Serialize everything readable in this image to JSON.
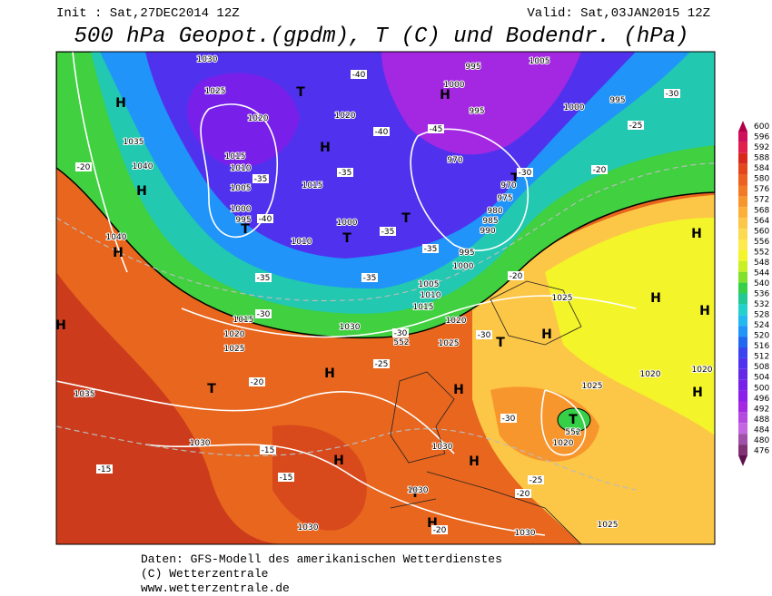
{
  "header": {
    "init": "Init : Sat,27DEC2014 12Z",
    "valid": "Valid: Sat,03JAN2015 12Z",
    "title": "500 hPa Geopot.(gpdm), T (C) und Bodendr. (hPa)"
  },
  "colorbar": {
    "levels": [
      600,
      596,
      592,
      588,
      584,
      580,
      576,
      572,
      568,
      564,
      560,
      556,
      552,
      548,
      544,
      540,
      536,
      532,
      528,
      524,
      520,
      516,
      512,
      508,
      504,
      500,
      496,
      492,
      488,
      484,
      480,
      476
    ],
    "colors": [
      "#b0004a",
      "#d0105a",
      "#e0204a",
      "#d8281c",
      "#e4461c",
      "#ec6020",
      "#f27a26",
      "#f8962e",
      "#fcb03a",
      "#fcc646",
      "#fcda50",
      "#fdea4c",
      "#f4f42a",
      "#c8f022",
      "#80e02a",
      "#36d048",
      "#22c894",
      "#22d0cc",
      "#22b8f0",
      "#2094f8",
      "#2068f0",
      "#3a44f0",
      "#5032ee",
      "#6428e6",
      "#7820ea",
      "#8c20ea",
      "#a428e2",
      "#b448e0",
      "#c466e0",
      "#a050a8",
      "#803274",
      "#5e1050"
    ]
  },
  "map_labels": [
    "H",
    "H",
    "H",
    "H",
    "T",
    "H",
    "H",
    "T",
    "H",
    "T",
    "T",
    "T",
    "H",
    "T",
    "T",
    "H",
    "H",
    "H",
    "T",
    "H",
    "H",
    "H",
    "H",
    "T",
    "H",
    "1030",
    "1025",
    "1020",
    "1035",
    "1040",
    "1015",
    "1010",
    "1005",
    "1000",
    "995",
    "1020",
    "1015",
    "1000",
    "1010",
    "1040",
    "1015",
    "1020",
    "1025",
    "1030",
    "1005",
    "1010",
    "1015",
    "1020",
    "1025",
    "995",
    "1000",
    "990",
    "985",
    "980",
    "975",
    "970",
    "995",
    "1000",
    "995",
    "970",
    "1000",
    "995",
    "1005",
    "1035",
    "1030",
    "1030",
    "1030",
    "1030",
    "1030",
    "1025",
    "1025",
    "1020",
    "1020",
    "1020",
    "1025",
    "552",
    "552",
    "-20",
    "-35",
    "-40",
    "-35",
    "-35",
    "-35",
    "-35",
    "-35",
    "-30",
    "-30",
    "-30",
    "-25",
    "-20",
    "-15",
    "-15",
    "-15",
    "-20",
    "-25",
    "-30",
    "-20",
    "-25",
    "-20",
    "-30",
    "-40",
    "-40",
    "-45",
    "-30",
    "-20"
  ],
  "footer": [
    "Daten: GFS-Modell des amerikanischen Wetterdienstes",
    "(C) Wetterzentrale",
    "www.wetterzentrale.de"
  ]
}
